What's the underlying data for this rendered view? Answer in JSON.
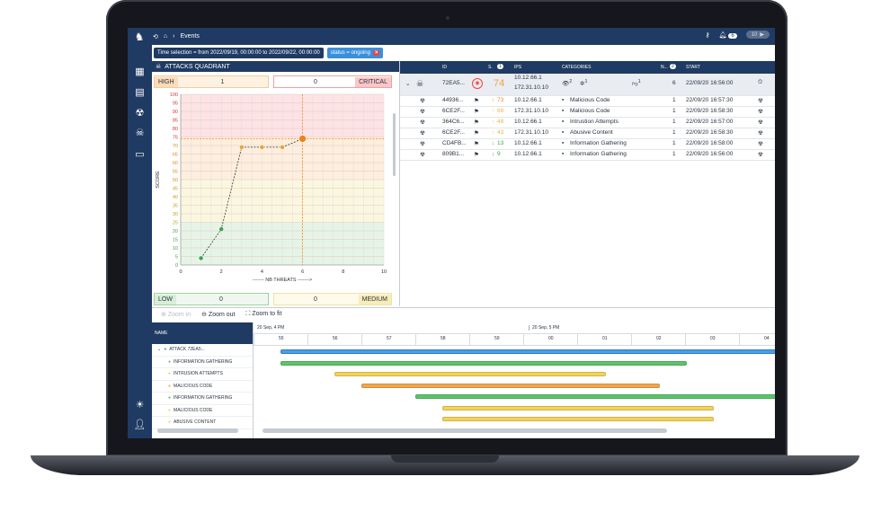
{
  "breadcrumb": {
    "page": "Events"
  },
  "topbar": {
    "notification_count": "6",
    "toggle_label": "10"
  },
  "filters": {
    "time_chip": "Time selection = from 2022/09/19, 00:00:00 to 2022/09/22, 00:00:00",
    "status_chip": "status = ongoing"
  },
  "quadrant": {
    "title": "ATTACKS QUADRANT",
    "high_label": "HIGH",
    "high_value": "1",
    "critical_value": "0",
    "critical_label": "CRITICAL",
    "low_label": "LOW",
    "low_value": "0",
    "medium_value": "0",
    "medium_label": "MEDIUM",
    "ylabel": "SCORE",
    "xlabel": "------- NB THREATS ------->"
  },
  "chart_data": {
    "type": "line",
    "xlabel": "------- NB THREATS ------->",
    "ylabel": "SCORE",
    "xlim": [
      0,
      10
    ],
    "ylim": [
      0,
      100
    ],
    "x_ticks": [
      0,
      2,
      4,
      6,
      8,
      10
    ],
    "y_ticks": [
      0,
      5,
      10,
      15,
      20,
      25,
      30,
      35,
      40,
      45,
      50,
      55,
      60,
      65,
      70,
      75,
      80,
      85,
      90,
      95,
      100
    ],
    "points": [
      {
        "x": 1,
        "y": 4,
        "color": "#3fa34d"
      },
      {
        "x": 2,
        "y": 21,
        "color": "#3fa34d"
      },
      {
        "x": 3,
        "y": 69,
        "color": "#f0a030"
      },
      {
        "x": 4,
        "y": 69,
        "color": "#f0a030"
      },
      {
        "x": 5,
        "y": 69,
        "color": "#f0a030"
      },
      {
        "x": 6,
        "y": 74,
        "color": "#f08020"
      }
    ],
    "bands": [
      {
        "from": 0,
        "to": 25,
        "color": "#e6f4e6"
      },
      {
        "from": 25,
        "to": 50,
        "color": "#fbf7df"
      },
      {
        "from": 50,
        "to": 75,
        "color": "#fdeedd"
      },
      {
        "from": 75,
        "to": 100,
        "color": "#fde3e3"
      }
    ],
    "crosshair": {
      "x": 6,
      "y": 74
    }
  },
  "table": {
    "headers": {
      "id": "ID",
      "s": "S.",
      "s_count": "1",
      "ips": "IPS",
      "categories": "CATEGORIES",
      "n": "N...",
      "n_count": "2",
      "start": "START"
    },
    "first_row": {
      "id": "72EA5...",
      "score": "74",
      "ip1": "10.12.66.1",
      "ip2": "172.31.10.10",
      "cat_badges": [
        "2",
        "1",
        "1"
      ],
      "n": "6",
      "start": "22/09/20 16:56:00"
    },
    "rows": [
      {
        "id": "44936...",
        "score": "73",
        "arrow": "up",
        "color": "#f08a24",
        "ip": "10.12.66.1",
        "category": "Malicious Code",
        "n": "1",
        "start": "22/09/20 16:57:30"
      },
      {
        "id": "6CE2F...",
        "score": "69",
        "arrow": "up",
        "color": "#f2b33d",
        "ip": "172.31.10.10",
        "category": "Malicious Code",
        "n": "1",
        "start": "22/09/20 16:58:30"
      },
      {
        "id": "364C6...",
        "score": "48",
        "arrow": "up",
        "color": "#f2b33d",
        "ip": "10.12.66.1",
        "category": "Intrustion Attempts",
        "n": "1",
        "start": "22/09/20 16:57:00"
      },
      {
        "id": "6CE2F...",
        "score": "43",
        "arrow": "up",
        "color": "#f2b33d",
        "ip": "172.31.10.10",
        "category": "Abusive Content",
        "n": "1",
        "start": "22/09/20 16:58:30"
      },
      {
        "id": "CD4FB...",
        "score": "13",
        "arrow": "down",
        "color": "#3fa34d",
        "ip": "10.12.66.1",
        "category": "Information Gathering",
        "n": "1",
        "start": "22/09/20 16:58:00"
      },
      {
        "id": "809B1...",
        "score": "9",
        "arrow": "down",
        "color": "#3fa34d",
        "ip": "10.12.66.1",
        "category": "Information Gathering",
        "n": "1",
        "start": "22/09/20 16:56:00"
      }
    ]
  },
  "timeline": {
    "zoom_in": "Zoom in",
    "zoom_out": "Zoom out",
    "zoom_fit": "Zoom to fit",
    "name_header": "NAME",
    "day1": "20 Sep, 4 PM",
    "day2": "20 Sep, 5 PM",
    "hours": [
      "55",
      "56",
      "57",
      "58",
      "59",
      "00",
      "01",
      "02",
      "03",
      "04"
    ],
    "items": [
      {
        "label": "ATTACK 72EA5...",
        "color": "#4a9ee8",
        "start": 0.5,
        "end": 10.0
      },
      {
        "label": "INFORMATION GATHERING",
        "color": "#5cc46a",
        "start": 0.5,
        "end": 8.0
      },
      {
        "label": "INTRUSION ATTEMPTS",
        "color": "#f2d45a",
        "start": 1.5,
        "end": 6.5
      },
      {
        "label": "MALICIOUS CODE",
        "color": "#f5a64a",
        "start": 2.0,
        "end": 7.5
      },
      {
        "label": "INFORMATION GATHERING",
        "color": "#5cc46a",
        "start": 3.0,
        "end": 10.0
      },
      {
        "label": "MALICIOUS CODE",
        "color": "#f2d45a",
        "start": 3.5,
        "end": 8.5
      },
      {
        "label": "ABUSIVE CONTENT",
        "color": "#f2d45a",
        "start": 3.5,
        "end": 8.5
      }
    ]
  }
}
